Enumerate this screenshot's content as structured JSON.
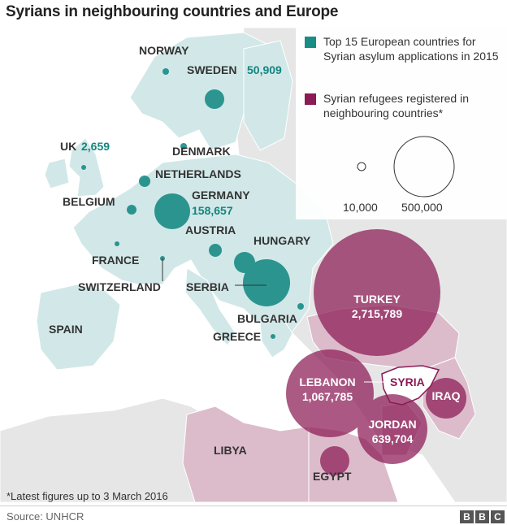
{
  "title": "Syrians in neighbouring countries and Europe",
  "legend": {
    "europe_label": "Top 15 European countries for Syrian asylum applications in 2015",
    "europe_color": "#1a8c86",
    "neighbour_label": "Syrian refugees registered in neighbouring countries*",
    "neighbour_color": "#8b1a55",
    "scale_small": "10,000",
    "scale_large": "500,000"
  },
  "countries": {
    "norway": "NORWAY",
    "sweden": "SWEDEN",
    "sweden_value": "50,909",
    "uk": "UK",
    "uk_value": "2,659",
    "denmark": "DENMARK",
    "netherlands": "NETHERLANDS",
    "belgium": "BELGIUM",
    "germany": "GERMANY",
    "germany_value": "158,657",
    "austria": "AUSTRIA",
    "hungary": "HUNGARY",
    "france": "FRANCE",
    "switzerland": "SWITZERLAND",
    "serbia": "SERBIA",
    "bulgaria": "BULGARIA",
    "spain": "SPAIN",
    "greece": "GREECE",
    "turkey": "TURKEY",
    "turkey_value": "2,715,789",
    "lebanon": "LEBANON",
    "lebanon_value": "1,067,785",
    "syria": "SYRIA",
    "iraq": "IRAQ",
    "jordan": "JORDAN",
    "jordan_value": "639,704",
    "libya": "LIBYA",
    "egypt": "EGYPT"
  },
  "footnote": "*Latest figures up to 3 March 2016",
  "source": "Source: UNHCR",
  "brand": [
    "B",
    "B",
    "C"
  ],
  "colors": {
    "europe_land": "#d2e8e8",
    "other_land": "#e6e6e6",
    "neighbour_land": "#dcbccb",
    "sea": "#ffffff"
  }
}
